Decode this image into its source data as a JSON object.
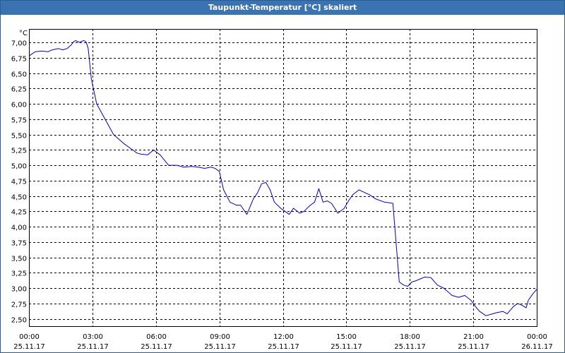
{
  "window": {
    "title": "Taupunkt-Temperatur [°C] skaliert"
  },
  "colors": {
    "titlebar": "#3b73b0",
    "line": "#0000cc",
    "grid": "#000000"
  },
  "chart_data": {
    "type": "line",
    "title": "Taupunkt-Temperatur [°C] skaliert",
    "ylabel": "°C",
    "xlabel": "",
    "ylim": [
      2.38,
      7.22
    ],
    "xlim_hours": [
      0,
      24
    ],
    "grid": true,
    "y_ticks": [
      "7,00",
      "6,75",
      "6,50",
      "6,25",
      "6,00",
      "5,75",
      "5,50",
      "5,25",
      "5,00",
      "4,75",
      "4,50",
      "4,25",
      "4,00",
      "3,75",
      "3,50",
      "3,25",
      "3,00",
      "2,75",
      "2,50"
    ],
    "y_tick_values": [
      7.0,
      6.75,
      6.5,
      6.25,
      6.0,
      5.75,
      5.5,
      5.25,
      5.0,
      4.75,
      4.5,
      4.25,
      4.0,
      3.75,
      3.5,
      3.25,
      3.0,
      2.75,
      2.5
    ],
    "x_ticks": [
      {
        "time": "00:00",
        "date": "25.11.17"
      },
      {
        "time": "03:00",
        "date": "25.11.17"
      },
      {
        "time": "06:00",
        "date": "25.11.17"
      },
      {
        "time": "09:00",
        "date": "25.11.17"
      },
      {
        "time": "12:00",
        "date": "25.11.17"
      },
      {
        "time": "15:00",
        "date": "25.11.17"
      },
      {
        "time": "18:00",
        "date": "25.11.17"
      },
      {
        "time": "21:00",
        "date": "25.11.17"
      },
      {
        "time": "00:00",
        "date": "26.11.17"
      }
    ],
    "x_tick_hours": [
      0,
      3,
      6,
      9,
      12,
      15,
      18,
      21,
      24
    ],
    "series": [
      {
        "x": [
          0.0,
          0.3,
          0.6,
          0.9,
          1.1,
          1.4,
          1.6,
          1.8,
          2.0,
          2.1,
          2.2,
          2.4,
          2.5,
          2.6,
          2.7,
          2.8,
          2.95,
          3.2,
          3.6,
          4.0,
          4.5,
          4.9,
          5.1,
          5.3,
          5.6,
          5.9,
          6.0,
          6.2,
          6.6,
          7.0,
          7.3,
          7.7,
          8.0,
          8.3,
          8.6,
          8.8,
          9.0,
          9.2,
          9.5,
          9.8,
          10.0,
          10.3,
          10.6,
          10.8,
          11.0,
          11.2,
          11.4,
          11.6,
          11.9,
          12.1,
          12.3,
          12.5,
          12.8,
          13.0,
          13.3,
          13.5,
          13.7,
          13.9,
          14.1,
          14.3,
          14.6,
          14.9,
          15.1,
          15.3,
          15.6,
          15.9,
          16.1,
          16.4,
          16.8,
          17.2,
          17.5,
          17.7,
          17.9,
          18.1,
          18.3,
          18.5,
          18.7,
          19.0,
          19.3,
          19.6,
          20.0,
          20.3,
          20.6,
          20.9,
          21.1,
          21.3,
          21.6,
          21.9,
          22.1,
          22.4,
          22.6,
          22.9,
          23.1,
          23.3,
          23.5,
          23.6,
          23.8,
          24.0
        ],
        "y": [
          6.78,
          6.85,
          6.86,
          6.85,
          6.88,
          6.9,
          6.88,
          6.9,
          6.96,
          7.01,
          7.03,
          7.0,
          7.02,
          7.03,
          7.01,
          6.9,
          6.4,
          6.0,
          5.75,
          5.5,
          5.35,
          5.25,
          5.2,
          5.18,
          5.17,
          5.25,
          5.22,
          5.17,
          5.0,
          5.0,
          4.97,
          4.98,
          4.97,
          4.95,
          4.97,
          4.95,
          4.9,
          4.6,
          4.4,
          4.35,
          4.35,
          4.2,
          4.45,
          4.55,
          4.7,
          4.72,
          4.6,
          4.4,
          4.3,
          4.25,
          4.2,
          4.3,
          4.22,
          4.25,
          4.35,
          4.4,
          4.62,
          4.4,
          4.42,
          4.38,
          4.22,
          4.3,
          4.42,
          4.52,
          4.6,
          4.55,
          4.52,
          4.45,
          4.4,
          4.38,
          3.1,
          3.05,
          3.03,
          3.1,
          3.12,
          3.15,
          3.18,
          3.17,
          3.05,
          3.0,
          2.88,
          2.85,
          2.88,
          2.8,
          2.7,
          2.62,
          2.55,
          2.58,
          2.6,
          2.62,
          2.58,
          2.7,
          2.75,
          2.72,
          2.68,
          2.8,
          2.9,
          2.98
        ]
      }
    ]
  }
}
